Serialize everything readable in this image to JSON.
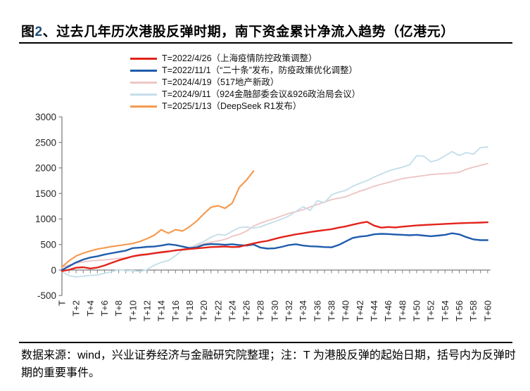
{
  "title": {
    "prefix": "图",
    "number": "2",
    "rest": "、过去几年历次港股反弹时期，南下资金累计净流入趋势（亿港元）"
  },
  "footer": {
    "text": "数据来源：wind，兴业证券经济与金融研究院整理；注：T 为港股反弹的起始日期，括号内为反弹时期的重要事件。"
  },
  "chart_data": {
    "type": "line",
    "title": "过去几年历次港股反弹时期，南下资金累计净流入趋势（亿港元）",
    "xlabel": "",
    "ylabel": "",
    "ylim": [
      -500,
      3000
    ],
    "ytick_interval": 500,
    "yticks": [
      3000,
      2500,
      2000,
      1500,
      1000,
      500,
      0,
      -500
    ],
    "grid": false,
    "legend_position": "top-left",
    "axis_color": "#7f7f7f",
    "tick_label_color": "#262626",
    "xtick_labels": [
      "T",
      "T+2",
      "T+4",
      "T+6",
      "T+8",
      "T+10",
      "T+12",
      "T+14",
      "T+16",
      "T+18",
      "T+20",
      "T+22",
      "T+24",
      "T+26",
      "T+28",
      "T+30",
      "T+32",
      "T+34",
      "T+36",
      "T+38",
      "T+40",
      "T+42",
      "T+44",
      "T+46",
      "T+48",
      "T+50",
      "T+52",
      "T+54",
      "T+56",
      "T+58",
      "T+60"
    ],
    "x_step_per_point": 1,
    "series": [
      {
        "name": "T=2022/4/26（上海疫情防控政策调整）",
        "color": "#e2231a",
        "values": [
          -20,
          5,
          45,
          55,
          30,
          50,
          90,
          140,
          190,
          230,
          270,
          295,
          308,
          330,
          350,
          365,
          385,
          400,
          412,
          424,
          437,
          450,
          455,
          460,
          450,
          455,
          490,
          520,
          550,
          572,
          610,
          645,
          672,
          700,
          720,
          745,
          765,
          782,
          800,
          830,
          855,
          890,
          920,
          945,
          870,
          830,
          843,
          835,
          850,
          862,
          873,
          882,
          890,
          897,
          903,
          910,
          917,
          921,
          925,
          930,
          935
        ]
      },
      {
        "name": "T=2022/11/1（“二十条”发布，防疫政策优化调整）",
        "color": "#1f5cab",
        "values": [
          0,
          75,
          150,
          205,
          245,
          270,
          305,
          330,
          355,
          380,
          430,
          440,
          455,
          460,
          480,
          505,
          490,
          460,
          430,
          445,
          495,
          510,
          505,
          495,
          505,
          490,
          480,
          500,
          440,
          420,
          425,
          455,
          490,
          505,
          480,
          465,
          460,
          450,
          445,
          490,
          560,
          630,
          655,
          670,
          700,
          710,
          705,
          695,
          690,
          682,
          690,
          675,
          662,
          675,
          690,
          720,
          698,
          645,
          600,
          585,
          585
        ]
      },
      {
        "name": "T=2024/4/19（517地产新政）",
        "color": "#eec6c6",
        "values": [
          55,
          95,
          135,
          160,
          178,
          190,
          200,
          212,
          226,
          244,
          262,
          280,
          298,
          316,
          334,
          356,
          380,
          410,
          445,
          480,
          515,
          545,
          570,
          600,
          660,
          700,
          760,
          860,
          920,
          965,
          1010,
          1060,
          1110,
          1145,
          1180,
          1235,
          1285,
          1330,
          1380,
          1408,
          1435,
          1490,
          1545,
          1590,
          1640,
          1680,
          1715,
          1755,
          1790,
          1812,
          1830,
          1850,
          1870,
          1880,
          1890,
          1900,
          1915,
          1975,
          2015,
          2050,
          2085
        ]
      },
      {
        "name": "T=2024/9/11（924金融部委会议&926政治局会议）",
        "color": "#c5dfea",
        "values": [
          -30,
          -110,
          -135,
          -120,
          -105,
          -95,
          -60,
          -35,
          10,
          -15,
          -10,
          -30,
          10,
          95,
          150,
          185,
          280,
          400,
          435,
          500,
          560,
          640,
          700,
          680,
          760,
          830,
          845,
          820,
          850,
          900,
          950,
          1000,
          1060,
          1150,
          1240,
          1170,
          1360,
          1320,
          1470,
          1525,
          1560,
          1640,
          1700,
          1750,
          1820,
          1880,
          1940,
          1980,
          2015,
          2060,
          2240,
          2230,
          2120,
          2155,
          2240,
          2320,
          2245,
          2300,
          2270,
          2400,
          2410
        ]
      },
      {
        "name": "T=2025/1/13（DeepSeek R1发布）",
        "color": "#f59b51",
        "values": [
          60,
          180,
          275,
          330,
          375,
          410,
          435,
          460,
          480,
          500,
          520,
          560,
          615,
          680,
          790,
          720,
          790,
          765,
          850,
          960,
          1100,
          1230,
          1260,
          1210,
          1310,
          1620,
          1760,
          1940
        ]
      }
    ]
  }
}
